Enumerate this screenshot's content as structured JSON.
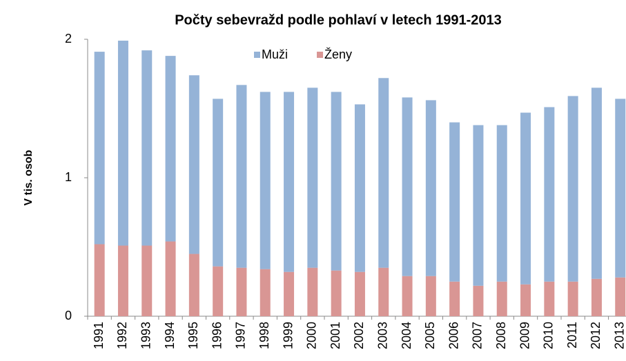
{
  "chart_data": {
    "type": "stacked_bar",
    "title": "Počty sebevražd podle pohlaví v letech 1991-2013",
    "y_label": "V tis. osob",
    "categories": [
      "1991",
      "1992",
      "1993",
      "1994",
      "1995",
      "1996",
      "1997",
      "1998",
      "1999",
      "2000",
      "2001",
      "2002",
      "2003",
      "2004",
      "2005",
      "2006",
      "2007",
      "2008",
      "2009",
      "2010",
      "2011",
      "2012",
      "2013"
    ],
    "series": [
      {
        "name": "Muži",
        "color": "#95b3d7",
        "values": [
          1.39,
          1.48,
          1.41,
          1.34,
          1.29,
          1.21,
          1.32,
          1.28,
          1.3,
          1.3,
          1.29,
          1.21,
          1.37,
          1.29,
          1.27,
          1.15,
          1.16,
          1.13,
          1.24,
          1.26,
          1.34,
          1.38,
          1.29
        ]
      },
      {
        "name": "Ženy",
        "color": "#d99694",
        "values": [
          0.52,
          0.51,
          0.51,
          0.54,
          0.45,
          0.36,
          0.35,
          0.34,
          0.32,
          0.35,
          0.33,
          0.32,
          0.35,
          0.29,
          0.29,
          0.25,
          0.22,
          0.25,
          0.23,
          0.25,
          0.25,
          0.27,
          0.28
        ]
      }
    ],
    "stack_order": [
      "Ženy",
      "Muži"
    ],
    "ylim": [
      0,
      2
    ],
    "yticks": [
      0,
      1,
      2
    ],
    "grid": false,
    "legend": "top"
  }
}
